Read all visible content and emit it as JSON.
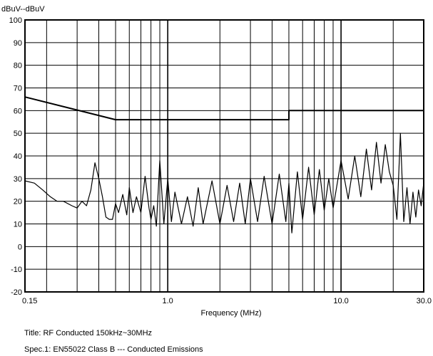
{
  "chart_data": {
    "type": "line",
    "ylabel": "dBuV--dBuV",
    "xlabel": "Frequency (MHz)",
    "x_scale": "log",
    "xlim": [
      0.15,
      30.0
    ],
    "ylim": [
      -20,
      100
    ],
    "x_ticks": [
      {
        "value": 0.15,
        "label": "0.15"
      },
      {
        "value": 1.0,
        "label": "1.0"
      },
      {
        "value": 10.0,
        "label": "10.0"
      },
      {
        "value": 30.0,
        "label": "30.0"
      }
    ],
    "y_ticks": [
      100,
      90,
      80,
      70,
      60,
      50,
      40,
      30,
      20,
      10,
      0,
      -10,
      -20
    ],
    "grid": true,
    "series": [
      {
        "role": "limit",
        "color": "#000000",
        "x": [
          0.15,
          0.5,
          5.0,
          5.0,
          30.0
        ],
        "y": [
          66,
          56,
          56,
          60,
          60
        ]
      },
      {
        "role": "measurement",
        "color": "#000000",
        "x": [
          0.15,
          0.17,
          0.19,
          0.21,
          0.23,
          0.25,
          0.28,
          0.3,
          0.32,
          0.34,
          0.36,
          0.38,
          0.4,
          0.42,
          0.44,
          0.46,
          0.48,
          0.5,
          0.52,
          0.55,
          0.58,
          0.6,
          0.63,
          0.66,
          0.7,
          0.74,
          0.78,
          0.8,
          0.83,
          0.86,
          0.9,
          0.95,
          1.0,
          1.05,
          1.1,
          1.2,
          1.3,
          1.4,
          1.5,
          1.6,
          1.8,
          2.0,
          2.2,
          2.4,
          2.6,
          2.8,
          3.0,
          3.3,
          3.6,
          4.0,
          4.4,
          4.8,
          5.0,
          5.2,
          5.6,
          6.0,
          6.5,
          7.0,
          7.5,
          8.0,
          8.5,
          9.0,
          10.0,
          11.0,
          12.0,
          13.0,
          14.0,
          15.0,
          16.0,
          17.0,
          18.0,
          19.0,
          20.0,
          21.0,
          22.0,
          23.0,
          24.0,
          25.0,
          26.0,
          27.0,
          28.0,
          29.0,
          30.0
        ],
        "y": [
          29,
          28,
          25,
          22,
          20,
          20,
          18,
          17,
          20,
          18,
          25,
          37,
          30,
          22,
          13,
          12,
          12,
          19,
          15,
          23,
          14,
          26,
          15,
          22,
          15,
          31,
          17,
          12,
          18,
          9,
          38,
          10,
          30,
          11,
          24,
          10,
          22,
          9,
          26,
          10,
          29,
          10,
          27,
          11,
          28,
          10,
          30,
          11,
          31,
          10,
          32,
          11,
          28,
          6,
          33,
          12,
          35,
          14,
          34,
          16,
          30,
          17,
          38,
          21,
          40,
          22,
          43,
          25,
          46,
          28,
          45,
          33,
          27,
          12,
          50,
          11,
          26,
          10,
          24,
          13,
          25,
          18,
          28
        ]
      }
    ]
  },
  "captions": {
    "title": "Title: RF Conducted 150kHz~30MHz",
    "spec": "Spec.1: EN55022 Class B --- Conducted Emissions"
  }
}
